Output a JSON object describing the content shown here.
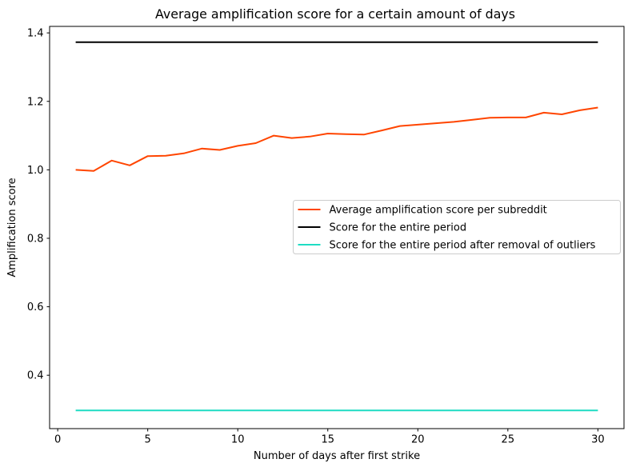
{
  "chart_data": {
    "type": "line",
    "title": "Average amplification score for a certain amount of days",
    "xlabel": "Number of days after first strike",
    "ylabel": "Amplification score",
    "xlim": [
      -0.45,
      31.45
    ],
    "ylim": [
      0.244,
      1.419
    ],
    "x_ticks": [
      0,
      5,
      10,
      15,
      20,
      25,
      30
    ],
    "x_tick_labels": [
      "0",
      "5",
      "10",
      "15",
      "20",
      "25",
      "30"
    ],
    "y_ticks": [
      0.4,
      0.6,
      0.8,
      1.0,
      1.2,
      1.4
    ],
    "y_tick_labels": [
      "0.4",
      "0.6",
      "0.8",
      "1.0",
      "1.2",
      "1.4"
    ],
    "grid": false,
    "legend_position": "center right",
    "x": [
      1,
      2,
      3,
      4,
      5,
      6,
      7,
      8,
      9,
      10,
      11,
      12,
      13,
      14,
      15,
      16,
      17,
      18,
      19,
      20,
      21,
      22,
      23,
      24,
      25,
      26,
      27,
      28,
      29,
      30
    ],
    "series": [
      {
        "name": "Average amplification score per subreddit",
        "color": "#FF4500",
        "values": [
          1.0,
          0.997,
          1.027,
          1.013,
          1.04,
          1.041,
          1.048,
          1.062,
          1.058,
          1.07,
          1.078,
          1.1,
          1.093,
          1.097,
          1.106,
          1.104,
          1.103,
          1.115,
          1.128,
          1.132,
          1.136,
          1.14,
          1.146,
          1.152,
          1.153,
          1.153,
          1.167,
          1.162,
          1.174,
          1.182
        ]
      },
      {
        "name": "Score for the entire period",
        "color": "#000000",
        "constant": 1.373
      },
      {
        "name": "Score for the entire period after removal of outliers",
        "color": "#1EDCC3",
        "constant": 0.297
      }
    ]
  }
}
